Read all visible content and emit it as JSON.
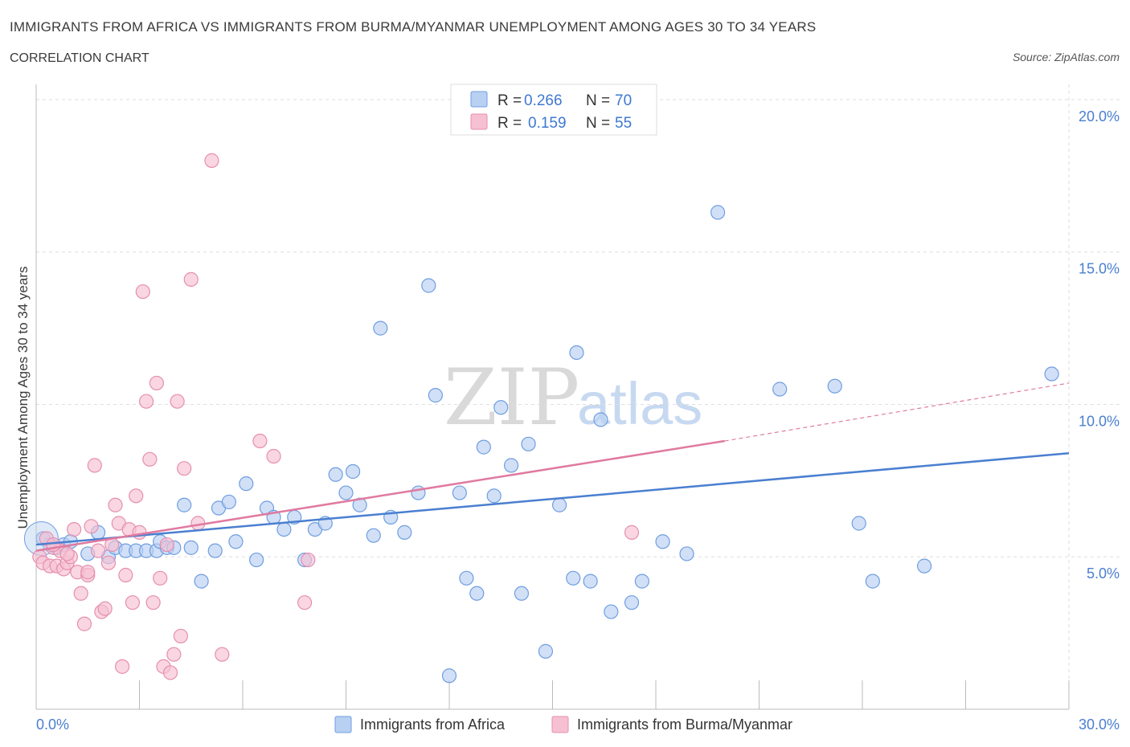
{
  "chart_data": {
    "type": "scatter",
    "title": "IMMIGRANTS FROM AFRICA VS IMMIGRANTS FROM BURMA/MYANMAR UNEMPLOYMENT AMONG AGES 30 TO 34 YEARS",
    "subtitle": "CORRELATION CHART",
    "source": "Source: ZipAtlas.com",
    "ylabel": "Unemployment Among Ages 30 to 34 years",
    "xlim": [
      0,
      30
    ],
    "ylim": [
      0,
      20.5
    ],
    "x_tick_labels": {
      "min": "0.0%",
      "max": "30.0%"
    },
    "y_ticks": [
      {
        "value": 5,
        "label": "5.0%"
      },
      {
        "value": 10,
        "label": "10.0%"
      },
      {
        "value": 15,
        "label": "15.0%"
      },
      {
        "value": 20,
        "label": "20.0%"
      }
    ],
    "colors": {
      "africa": "#4a7fd0",
      "africa_fill": "#b8d0f2",
      "burma": "#e07aa0",
      "burma_fill": "#f6c0d2"
    },
    "legend": {
      "r_label": "R =",
      "n_label": "N =",
      "rows": [
        {
          "series": "africa",
          "r": "0.266",
          "n": "70"
        },
        {
          "series": "burma",
          "r": "0.159",
          "n": "55"
        }
      ]
    },
    "watermark": {
      "zip": "ZIP",
      "atlas": "atlas"
    },
    "series": [
      {
        "name": "Immigrants from Africa",
        "key": "africa",
        "trend": {
          "x0": 0,
          "y0": 5.4,
          "x1": 30,
          "y1": 8.4
        },
        "points": [
          [
            0.2,
            5.6
          ],
          [
            0.4,
            5.4
          ],
          [
            0.6,
            5.3
          ],
          [
            0.8,
            5.4
          ],
          [
            1.0,
            5.5
          ],
          [
            1.5,
            5.1
          ],
          [
            1.8,
            5.8
          ],
          [
            2.1,
            5.0
          ],
          [
            2.3,
            5.3
          ],
          [
            2.6,
            5.2
          ],
          [
            2.9,
            5.2
          ],
          [
            3.2,
            5.2
          ],
          [
            3.5,
            5.2
          ],
          [
            3.6,
            5.5
          ],
          [
            3.8,
            5.3
          ],
          [
            4.0,
            5.3
          ],
          [
            4.3,
            6.7
          ],
          [
            4.5,
            5.3
          ],
          [
            4.8,
            4.2
          ],
          [
            5.2,
            5.2
          ],
          [
            5.3,
            6.6
          ],
          [
            5.6,
            6.8
          ],
          [
            5.8,
            5.5
          ],
          [
            6.1,
            7.4
          ],
          [
            6.4,
            4.9
          ],
          [
            6.7,
            6.6
          ],
          [
            6.9,
            6.3
          ],
          [
            7.2,
            5.9
          ],
          [
            7.5,
            6.3
          ],
          [
            7.8,
            4.9
          ],
          [
            8.1,
            5.9
          ],
          [
            8.4,
            6.1
          ],
          [
            8.7,
            7.7
          ],
          [
            9.0,
            7.1
          ],
          [
            9.2,
            7.8
          ],
          [
            9.4,
            6.7
          ],
          [
            9.8,
            5.7
          ],
          [
            10.0,
            12.5
          ],
          [
            10.3,
            6.3
          ],
          [
            10.7,
            5.8
          ],
          [
            11.1,
            7.1
          ],
          [
            11.4,
            13.9
          ],
          [
            11.6,
            10.3
          ],
          [
            12.0,
            1.1
          ],
          [
            12.3,
            7.1
          ],
          [
            12.5,
            4.3
          ],
          [
            12.8,
            3.8
          ],
          [
            13.0,
            8.6
          ],
          [
            13.3,
            7.0
          ],
          [
            13.5,
            9.9
          ],
          [
            13.8,
            8.0
          ],
          [
            14.1,
            3.8
          ],
          [
            14.3,
            8.7
          ],
          [
            14.8,
            1.9
          ],
          [
            15.2,
            6.7
          ],
          [
            15.6,
            4.3
          ],
          [
            15.7,
            11.7
          ],
          [
            16.1,
            4.2
          ],
          [
            16.4,
            9.5
          ],
          [
            16.7,
            3.2
          ],
          [
            17.3,
            3.5
          ],
          [
            17.6,
            4.2
          ],
          [
            18.2,
            5.5
          ],
          [
            18.9,
            5.1
          ],
          [
            19.8,
            16.3
          ],
          [
            21.6,
            10.5
          ],
          [
            23.2,
            10.6
          ],
          [
            23.9,
            6.1
          ],
          [
            24.3,
            4.2
          ],
          [
            25.8,
            4.7
          ],
          [
            29.5,
            11.0
          ]
        ]
      },
      {
        "name": "Immigrants from Burma/Myanmar",
        "key": "burma",
        "trend": {
          "x0": 0,
          "y0": 5.2,
          "x1": 20,
          "y1": 8.8
        },
        "trend_ext": {
          "x0": 20,
          "y0": 8.8,
          "x1": 30,
          "y1": 10.7
        },
        "points": [
          [
            0.1,
            5.0
          ],
          [
            0.2,
            4.8
          ],
          [
            0.3,
            5.6
          ],
          [
            0.4,
            4.7
          ],
          [
            0.5,
            5.3
          ],
          [
            0.6,
            4.7
          ],
          [
            0.7,
            5.2
          ],
          [
            0.8,
            4.6
          ],
          [
            0.9,
            4.8
          ],
          [
            1.0,
            5.0
          ],
          [
            1.1,
            5.9
          ],
          [
            1.2,
            4.5
          ],
          [
            1.3,
            3.8
          ],
          [
            1.4,
            2.8
          ],
          [
            1.5,
            4.4
          ],
          [
            1.6,
            6.0
          ],
          [
            1.7,
            8.0
          ],
          [
            1.8,
            5.2
          ],
          [
            1.9,
            3.2
          ],
          [
            2.0,
            3.3
          ],
          [
            2.1,
            4.8
          ],
          [
            2.2,
            5.4
          ],
          [
            2.3,
            6.7
          ],
          [
            2.4,
            6.1
          ],
          [
            2.5,
            1.4
          ],
          [
            2.6,
            4.4
          ],
          [
            2.7,
            5.9
          ],
          [
            2.8,
            3.5
          ],
          [
            2.9,
            7.0
          ],
          [
            3.0,
            5.8
          ],
          [
            3.1,
            13.7
          ],
          [
            3.2,
            10.1
          ],
          [
            3.3,
            8.2
          ],
          [
            3.4,
            3.5
          ],
          [
            3.5,
            10.7
          ],
          [
            3.6,
            4.3
          ],
          [
            3.7,
            1.4
          ],
          [
            3.8,
            5.4
          ],
          [
            3.9,
            1.2
          ],
          [
            4.0,
            1.8
          ],
          [
            4.1,
            10.1
          ],
          [
            4.2,
            2.4
          ],
          [
            4.3,
            7.9
          ],
          [
            4.5,
            14.1
          ],
          [
            4.7,
            6.1
          ],
          [
            5.1,
            18.0
          ],
          [
            5.4,
            1.8
          ],
          [
            6.5,
            8.8
          ],
          [
            6.9,
            8.3
          ],
          [
            7.8,
            3.5
          ],
          [
            7.9,
            4.9
          ],
          [
            17.3,
            5.8
          ],
          [
            1.5,
            4.5
          ],
          [
            0.9,
            5.1
          ],
          [
            0.5,
            5.4
          ]
        ]
      }
    ]
  }
}
